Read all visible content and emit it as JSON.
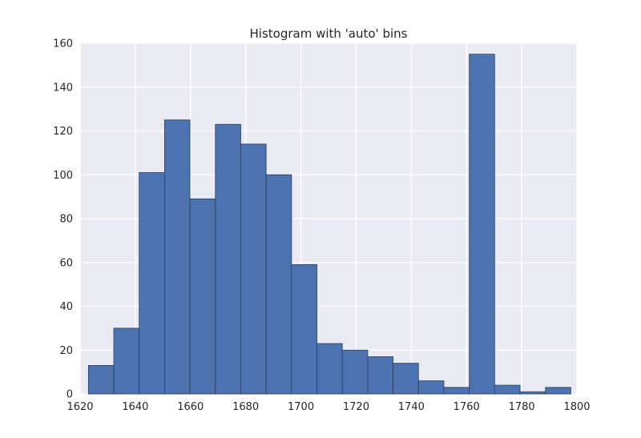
{
  "chart_data": {
    "type": "bar",
    "title": "Histogram with 'auto' bins",
    "xlabel": "",
    "ylabel": "",
    "xlim": [
      1620,
      1800
    ],
    "ylim": [
      0,
      160
    ],
    "xticks": [
      1620,
      1640,
      1660,
      1680,
      1700,
      1720,
      1740,
      1760,
      1780,
      1800
    ],
    "yticks": [
      0,
      20,
      40,
      60,
      80,
      100,
      120,
      140,
      160
    ],
    "grid": true,
    "bins": {
      "edges": [
        1623,
        1632.2,
        1641.4,
        1650.6,
        1659.8,
        1669.0,
        1678.2,
        1687.4,
        1696.6,
        1705.8,
        1715.0,
        1724.2,
        1733.4,
        1742.6,
        1751.8,
        1761.0,
        1770.2,
        1779.4,
        1788.6,
        1797.8
      ],
      "counts": [
        13,
        30,
        101,
        125,
        89,
        123,
        114,
        100,
        59,
        23,
        20,
        17,
        14,
        6,
        3,
        155,
        4,
        1,
        3
      ]
    },
    "colors": {
      "bar": "#4c72b0",
      "bar_edge": "#2b3f5e",
      "background": "#eaeaf2",
      "grid": "#ffffff"
    }
  }
}
